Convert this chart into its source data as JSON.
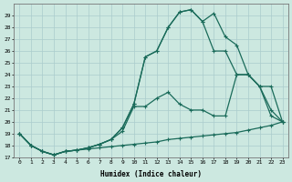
{
  "xlabel": "Humidex (Indice chaleur)",
  "bg_color": "#cce8e0",
  "grid_color": "#aacccc",
  "line_color": "#1a6b5a",
  "xlim": [
    -0.5,
    23.5
  ],
  "ylim": [
    17,
    30
  ],
  "xticks": [
    0,
    1,
    2,
    3,
    4,
    5,
    6,
    7,
    8,
    9,
    10,
    11,
    12,
    13,
    14,
    15,
    16,
    17,
    18,
    19,
    20,
    21,
    22,
    23
  ],
  "yticks": [
    17,
    18,
    19,
    20,
    21,
    22,
    23,
    24,
    25,
    26,
    27,
    28,
    29
  ],
  "line1_x": [
    0,
    1,
    2,
    3,
    4,
    5,
    6,
    7,
    8,
    9,
    10,
    11,
    12,
    13,
    14,
    15,
    16,
    17,
    18,
    19,
    20,
    21,
    22,
    23
  ],
  "line1_y": [
    19,
    18,
    17.5,
    17.2,
    17.5,
    17.6,
    17.7,
    17.8,
    17.9,
    18.0,
    18.1,
    18.2,
    18.3,
    18.5,
    18.6,
    18.7,
    18.8,
    18.9,
    19.0,
    19.1,
    19.3,
    19.5,
    19.7,
    20.0
  ],
  "line2_x": [
    0,
    1,
    2,
    3,
    4,
    5,
    6,
    7,
    8,
    9,
    10,
    11,
    12,
    13,
    14,
    15,
    16,
    17,
    18,
    19,
    20,
    21,
    22,
    23
  ],
  "line2_y": [
    19,
    18,
    17.5,
    17.2,
    17.5,
    17.6,
    17.8,
    18.1,
    18.5,
    19.2,
    21.3,
    21.3,
    22.0,
    22.5,
    21.5,
    21.0,
    21.0,
    20.5,
    20.5,
    24.0,
    24.0,
    23.0,
    21.0,
    20.0
  ],
  "line3_x": [
    0,
    1,
    2,
    3,
    4,
    5,
    6,
    7,
    8,
    9,
    10,
    11,
    12,
    13,
    14,
    15,
    16,
    17,
    18,
    19,
    20,
    21,
    22,
    23
  ],
  "line3_y": [
    19,
    18,
    17.5,
    17.2,
    17.5,
    17.6,
    17.8,
    18.1,
    18.5,
    19.5,
    21.5,
    25.5,
    26.0,
    28.0,
    29.3,
    29.5,
    28.5,
    29.2,
    27.2,
    26.5,
    24.0,
    23.0,
    20.5,
    20.0
  ],
  "line4_x": [
    0,
    1,
    2,
    3,
    4,
    5,
    6,
    7,
    8,
    9,
    10,
    11,
    12,
    13,
    14,
    15,
    16,
    17,
    18,
    19,
    20,
    21,
    22,
    23
  ],
  "line4_y": [
    19,
    18,
    17.5,
    17.2,
    17.5,
    17.6,
    17.8,
    18.1,
    18.5,
    19.5,
    21.5,
    25.5,
    26.0,
    28.0,
    29.3,
    29.5,
    28.5,
    26.0,
    26.0,
    24.0,
    24.0,
    23.0,
    23.0,
    20.0
  ]
}
